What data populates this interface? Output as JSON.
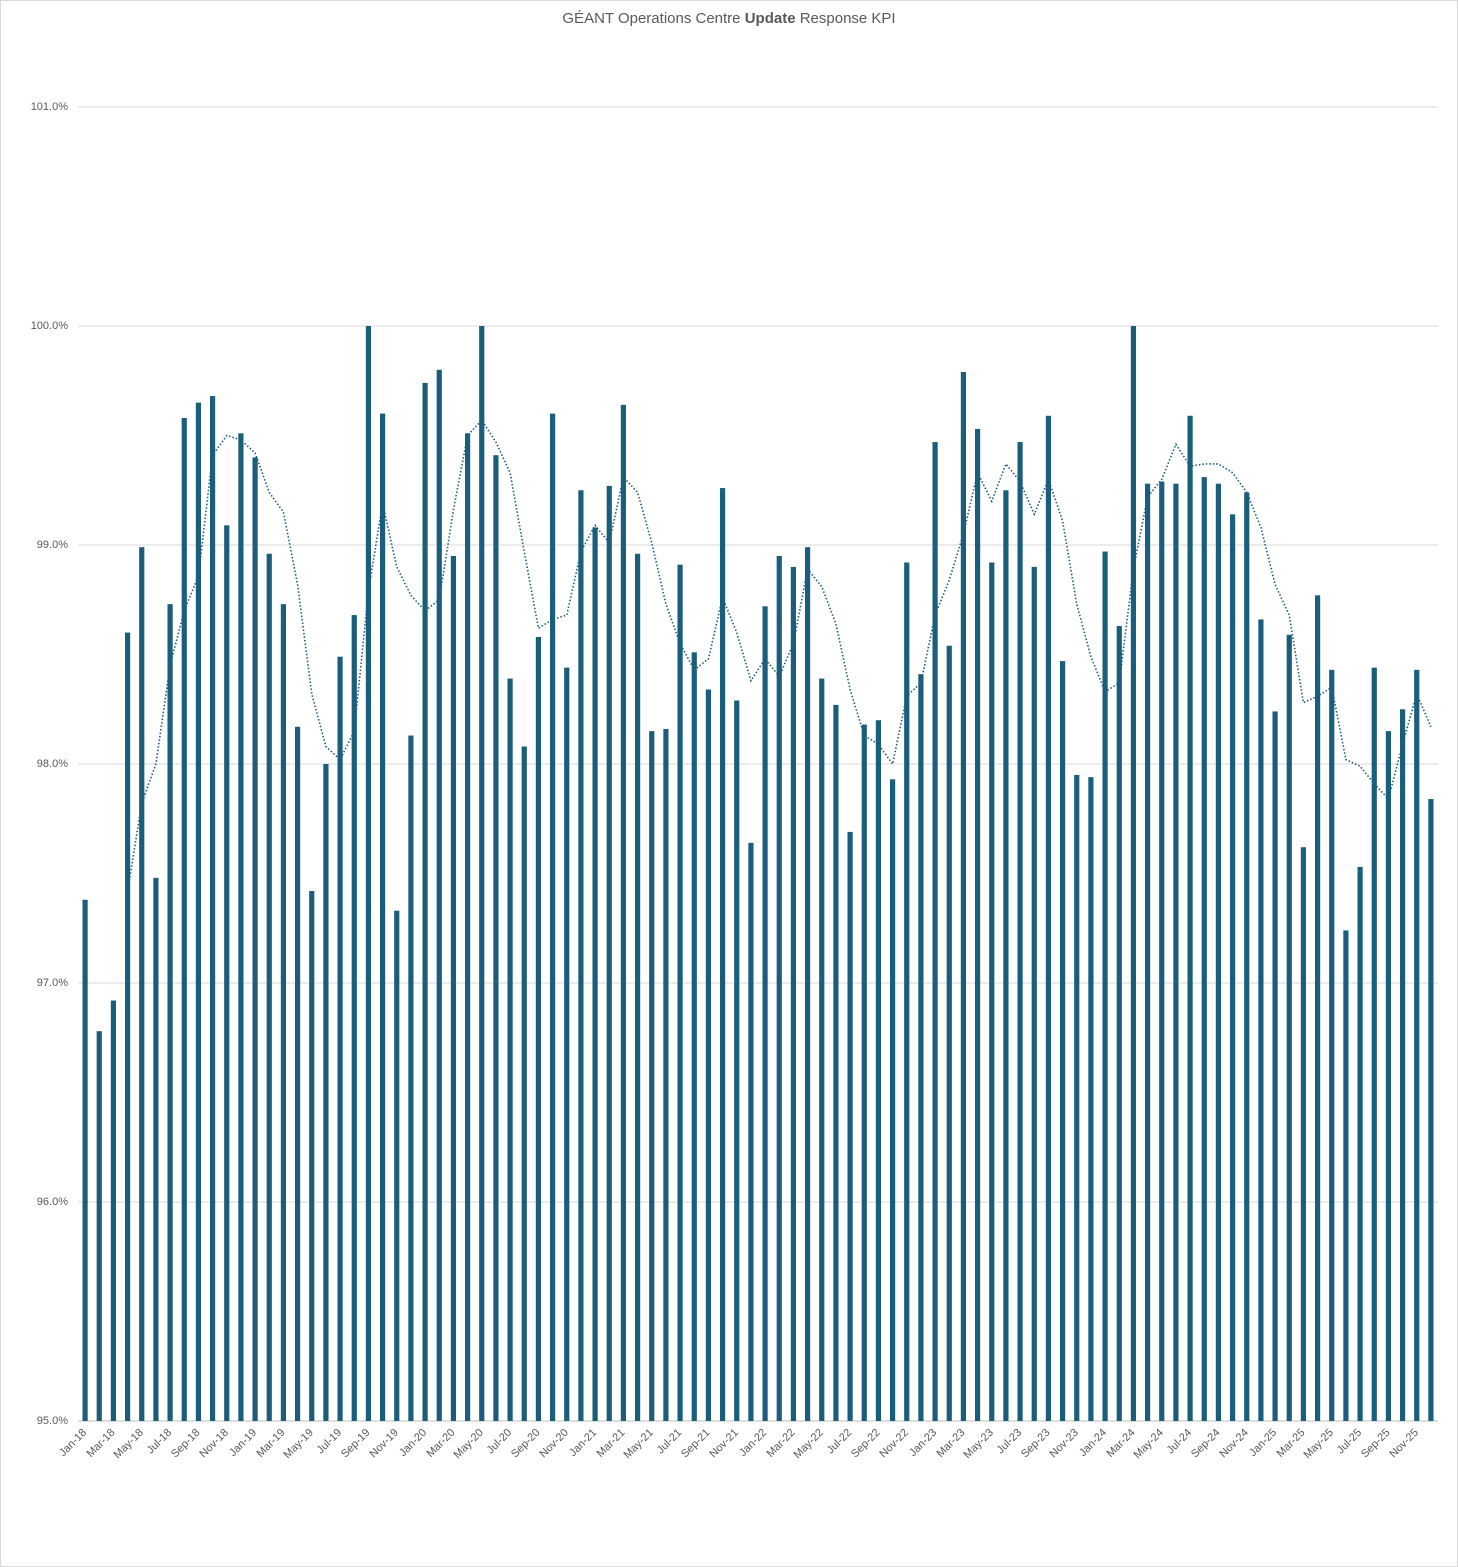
{
  "chart_data": {
    "type": "bar",
    "title": [
      "GÉANT Operations Centre ",
      "Update",
      " Response KPI"
    ],
    "categories": [
      "Jan-18",
      null,
      "Mar-18",
      null,
      "May-18",
      null,
      "Jul-18",
      null,
      "Sep-18",
      null,
      "Nov-18",
      null,
      "Jan-19",
      null,
      "Mar-19",
      null,
      "May-19",
      null,
      "Jul-19",
      null,
      "Sep-19",
      null,
      "Nov-19",
      null,
      "Jan-20",
      null,
      "Mar-20",
      null,
      "May-20",
      null,
      "Jul-20",
      null,
      "Sep-20",
      null,
      "Nov-20",
      null,
      "Jan-21",
      null,
      "Mar-21",
      null,
      "May-21",
      null,
      "Jul-21",
      null,
      "Sep-21",
      null,
      "Nov-21",
      null,
      "Jan-22",
      null,
      "Mar-22",
      null,
      "May-22",
      null,
      "Jul-22",
      null,
      "Sep-22",
      null,
      "Nov-22",
      null,
      "Jan-23",
      null,
      "Mar-23",
      null,
      "May-23",
      null,
      "Jul-23",
      null,
      "Sep-23",
      null,
      "Nov-23",
      null,
      "Jan-24",
      null,
      "Mar-24",
      null,
      "May-24",
      null,
      "Jul-24",
      null,
      "Sep-24",
      null,
      "Nov-24",
      null,
      "Jan-25",
      null,
      "Mar-25",
      null,
      "May-25",
      null,
      "Jul-25",
      null,
      "Sep-25",
      null,
      "Nov-25",
      null
    ],
    "series": [
      {
        "type": "bar",
        "color": "#1b5e7b",
        "values": [
          97.38,
          96.78,
          96.92,
          98.6,
          98.99,
          97.48,
          98.73,
          99.58,
          99.65,
          99.68,
          99.09,
          99.51,
          99.4,
          98.96,
          98.73,
          98.17,
          97.42,
          98.0,
          98.49,
          98.68,
          100.0,
          99.6,
          97.33,
          98.13,
          99.74,
          99.8,
          98.95,
          99.51,
          100.0,
          99.41,
          98.39,
          98.08,
          98.58,
          99.6,
          98.44,
          99.25,
          99.08,
          99.27,
          99.64,
          98.96,
          98.15,
          98.16,
          98.91,
          98.51,
          98.34,
          99.26,
          98.29,
          97.64,
          98.72,
          98.95,
          98.9,
          98.99,
          98.39,
          98.27,
          97.69,
          98.18,
          98.2,
          97.93,
          98.92,
          98.41,
          99.47,
          98.54,
          99.79,
          99.53,
          98.92,
          99.25,
          99.47,
          98.9,
          99.59,
          98.47,
          97.95,
          97.94,
          98.97,
          98.63,
          100.0,
          99.28,
          99.29,
          99.28,
          99.59,
          99.31,
          99.28,
          99.14,
          99.24,
          98.66,
          98.24,
          98.59,
          97.62,
          98.77,
          98.43,
          97.24,
          97.53,
          98.44,
          98.15,
          98.25,
          98.43,
          97.84
        ]
      },
      {
        "type": "line",
        "line_style": "dotted",
        "color": "#1b5e7b",
        "values": [
          null,
          null,
          null,
          97.42,
          97.82,
          98.0,
          98.45,
          98.7,
          98.86,
          99.41,
          99.5,
          99.48,
          99.42,
          99.24,
          99.15,
          98.82,
          98.32,
          98.08,
          98.02,
          98.15,
          98.79,
          99.19,
          98.9,
          98.77,
          98.7,
          98.75,
          99.16,
          99.5,
          99.57,
          99.47,
          99.33,
          98.97,
          98.62,
          98.66,
          98.68,
          98.97,
          99.09,
          99.01,
          99.31,
          99.24,
          99.01,
          98.73,
          98.55,
          98.43,
          98.48,
          98.76,
          98.6,
          98.38,
          98.48,
          98.4,
          98.55,
          98.89,
          98.81,
          98.64,
          98.34,
          98.13,
          98.09,
          98.0,
          98.31,
          98.37,
          98.68,
          98.84,
          99.05,
          99.33,
          99.2,
          99.37,
          99.29,
          99.14,
          99.3,
          99.11,
          98.73,
          98.49,
          98.33,
          98.37,
          98.89,
          99.22,
          99.3,
          99.46,
          99.36,
          99.37,
          99.37,
          99.33,
          99.24,
          99.08,
          98.82,
          98.68,
          98.28,
          98.31,
          98.35,
          98.02,
          97.99,
          97.91,
          97.84,
          98.09,
          98.32,
          98.17
        ]
      }
    ],
    "ylim": [
      95,
      101
    ],
    "yticks": [
      {
        "value": 95,
        "label": "95.0%"
      },
      {
        "value": 96,
        "label": "96.0%"
      },
      {
        "value": 97,
        "label": "97.0%"
      },
      {
        "value": 98,
        "label": "98.0%"
      },
      {
        "value": 99,
        "label": "99.0%"
      },
      {
        "value": 100,
        "label": "100.0%"
      },
      {
        "value": 101,
        "label": "101.0%"
      }
    ],
    "grid": true
  }
}
